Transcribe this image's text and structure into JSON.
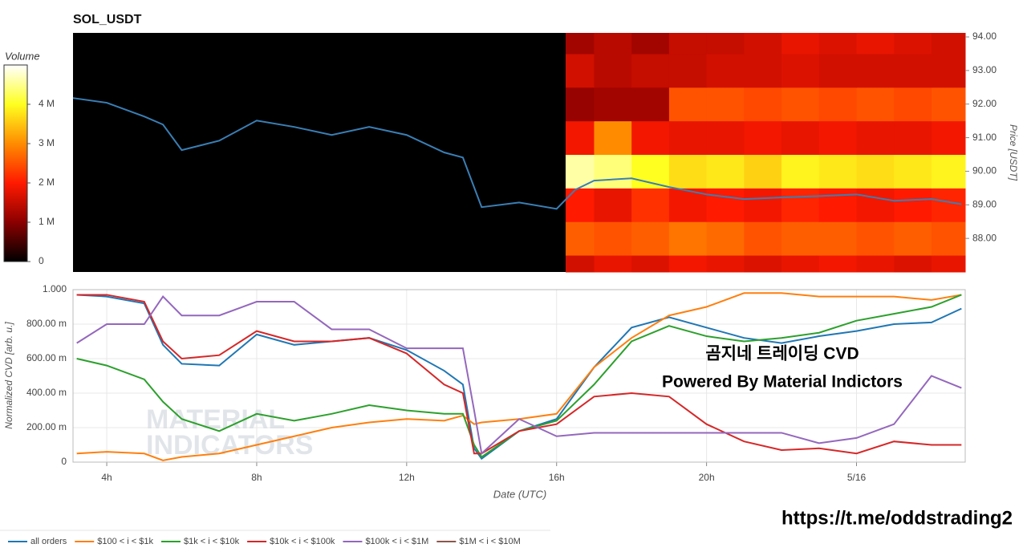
{
  "chart_data": [
    {
      "type": "heatmap",
      "title": "SOL_USDT",
      "y_label": "Price [USDT]",
      "colorbar_label": "Volume",
      "xlim": [
        3.1,
        26.9
      ],
      "ylim": [
        87.0,
        94.12
      ],
      "yticks": [
        {
          "value": 88,
          "label": "88.00"
        },
        {
          "value": 89,
          "label": "89.00"
        },
        {
          "value": 90,
          "label": "90.00"
        },
        {
          "value": 91,
          "label": "91.00"
        },
        {
          "value": 92,
          "label": "92.00"
        },
        {
          "value": 93,
          "label": "93.00"
        },
        {
          "value": 94,
          "label": "94.00"
        }
      ],
      "zlim": [
        0,
        5000000
      ],
      "zticks": [
        0,
        {
          "value": 1000000,
          "label": "1 M"
        },
        {
          "value": 2000000,
          "label": "2 M"
        },
        {
          "value": 3000000,
          "label": "3 M"
        },
        {
          "value": 4000000,
          "label": "4 M"
        }
      ],
      "colorscale": [
        "#000000",
        "#8b0000",
        "#ff1a00",
        "#ff8c00",
        "#ffff20",
        "#ffffff"
      ],
      "background": "#000000",
      "x_bins": [
        16.24,
        17,
        18,
        19,
        20,
        21,
        22,
        23,
        24,
        25,
        26,
        26.9
      ],
      "y_bins": [
        87.0,
        87.5,
        88.5,
        89.5,
        90.5,
        91.5,
        92.5,
        93.5,
        94.12
      ],
      "z": [
        [
          1600000,
          1800000,
          1700000,
          1900000,
          1800000,
          1700000,
          1800000,
          1900000,
          1800000,
          1700000,
          1800000
        ],
        [
          2600000,
          2500000,
          2600000,
          2800000,
          2700000,
          2500000,
          2600000,
          2600000,
          2500000,
          2600000,
          2500000
        ],
        [
          2000000,
          1800000,
          2200000,
          1900000,
          2000000,
          1900000,
          2100000,
          2000000,
          1900000,
          2000000,
          2100000
        ],
        [
          4600000,
          4400000,
          4000000,
          3700000,
          3800000,
          3600000,
          3900000,
          3800000,
          3700000,
          3800000,
          3900000
        ],
        [
          1900000,
          3000000,
          1900000,
          1800000,
          1800000,
          1900000,
          1800000,
          1900000,
          1800000,
          1800000,
          1900000
        ],
        [
          1100000,
          1200000,
          1200000,
          2500000,
          2500000,
          2400000,
          2500000,
          2400000,
          2500000,
          2400000,
          2500000
        ],
        [
          1600000,
          1400000,
          1500000,
          1500000,
          1600000,
          1600000,
          1700000,
          1600000,
          1600000,
          1600000,
          1600000
        ],
        [
          1200000,
          1400000,
          1200000,
          1500000,
          1500000,
          1600000,
          1800000,
          1700000,
          1800000,
          1700000,
          1600000
        ]
      ],
      "price": {
        "color": "#3a7fb5",
        "x": [
          3.1,
          4,
          5,
          5.5,
          6,
          7,
          8,
          9,
          10,
          11,
          12,
          13,
          13.5,
          14,
          15,
          16,
          16.5,
          17,
          18,
          19,
          20,
          21,
          22,
          23,
          24,
          25,
          26,
          26.8
        ],
        "values": [
          92.18,
          92.04,
          91.63,
          91.39,
          90.63,
          90.91,
          91.51,
          91.32,
          91.08,
          91.32,
          91.08,
          90.56,
          90.41,
          88.93,
          89.07,
          88.88,
          89.45,
          89.72,
          89.79,
          89.53,
          89.31,
          89.17,
          89.22,
          89.26,
          89.31,
          89.12,
          89.17,
          89.02
        ]
      }
    },
    {
      "type": "line",
      "x_label": "Date (UTC)",
      "y_label": "Normalized CVD [arb. u.]",
      "xlim": [
        3.1,
        26.9
      ],
      "ylim": [
        0,
        1.0
      ],
      "xticks": [
        {
          "value": 4,
          "label": "4h"
        },
        {
          "value": 8,
          "label": "8h"
        },
        {
          "value": 12,
          "label": "12h"
        },
        {
          "value": 16,
          "label": "16h"
        },
        {
          "value": 20,
          "label": "20h"
        },
        {
          "value": 24,
          "label": "5/16"
        }
      ],
      "yticks": [
        0,
        {
          "value": 0.2,
          "label": "200.00 m"
        },
        {
          "value": 0.4,
          "label": "400.00 m"
        },
        {
          "value": 0.6,
          "label": "600.00 m"
        },
        {
          "value": 0.8,
          "label": "800.00 m"
        },
        {
          "value": 1.0,
          "label": "1.000"
        }
      ],
      "grid": true,
      "legend": "bottom",
      "annotations": [
        "곰지네 트레이딩 CVD",
        "Powered By Material Indictors"
      ],
      "watermark": [
        "MATERIAL",
        "INDICATORS"
      ],
      "x": [
        3.2,
        4,
        5,
        5.5,
        6,
        7,
        8,
        9,
        10,
        11,
        12,
        13,
        13.5,
        13.8,
        14,
        15,
        16,
        17,
        18,
        19,
        20,
        21,
        22,
        23,
        24,
        25,
        26,
        26.8
      ],
      "series": [
        {
          "name": "all orders",
          "color": "#1f77b4",
          "values": [
            0.97,
            0.96,
            0.92,
            0.68,
            0.57,
            0.56,
            0.74,
            0.68,
            0.7,
            0.72,
            0.65,
            0.53,
            0.45,
            0.08,
            0.02,
            0.18,
            0.25,
            0.55,
            0.78,
            0.84,
            0.78,
            0.72,
            0.69,
            0.73,
            0.76,
            0.8,
            0.81,
            0.89
          ]
        },
        {
          "name": "$100 < i < $1k",
          "color": "#ff7f0e",
          "values": [
            0.05,
            0.06,
            0.05,
            0.01,
            0.03,
            0.05,
            0.1,
            0.15,
            0.2,
            0.23,
            0.25,
            0.24,
            0.27,
            0.22,
            0.23,
            0.25,
            0.28,
            0.55,
            0.72,
            0.85,
            0.9,
            0.98,
            0.98,
            0.96,
            0.96,
            0.96,
            0.94,
            0.97
          ]
        },
        {
          "name": "$1k < i < $10k",
          "color": "#2ca02c",
          "values": [
            0.6,
            0.56,
            0.48,
            0.35,
            0.25,
            0.18,
            0.28,
            0.24,
            0.28,
            0.33,
            0.3,
            0.28,
            0.28,
            0.1,
            0.03,
            0.18,
            0.24,
            0.45,
            0.7,
            0.79,
            0.73,
            0.7,
            0.72,
            0.75,
            0.82,
            0.86,
            0.9,
            0.97
          ]
        },
        {
          "name": "$10k < i < $100k",
          "color": "#d62728",
          "values": [
            0.97,
            0.97,
            0.93,
            0.7,
            0.6,
            0.62,
            0.76,
            0.7,
            0.7,
            0.72,
            0.63,
            0.45,
            0.4,
            0.05,
            0.05,
            0.18,
            0.22,
            0.38,
            0.4,
            0.38,
            0.22,
            0.12,
            0.07,
            0.08,
            0.05,
            0.12,
            0.1,
            0.1
          ]
        },
        {
          "name": "$100k < i < $1M",
          "color": "#9467bd",
          "values": [
            0.69,
            0.8,
            0.8,
            0.96,
            0.85,
            0.85,
            0.93,
            0.93,
            0.77,
            0.77,
            0.66,
            0.66,
            0.66,
            0.3,
            0.05,
            0.25,
            0.15,
            0.17,
            0.17,
            0.17,
            0.17,
            0.17,
            0.17,
            0.11,
            0.14,
            0.22,
            0.5,
            0.43
          ]
        },
        {
          "name": "$1M < i < $10M",
          "color": "#8c564b",
          "values": [
            null,
            null,
            null,
            null,
            null,
            null,
            null,
            null,
            null,
            null,
            null,
            null,
            null,
            null,
            null,
            null,
            null,
            null,
            null,
            null,
            null,
            null,
            null,
            null,
            null,
            null,
            null,
            null
          ]
        }
      ]
    }
  ],
  "footer_text": "https://t.me/oddstrading2"
}
